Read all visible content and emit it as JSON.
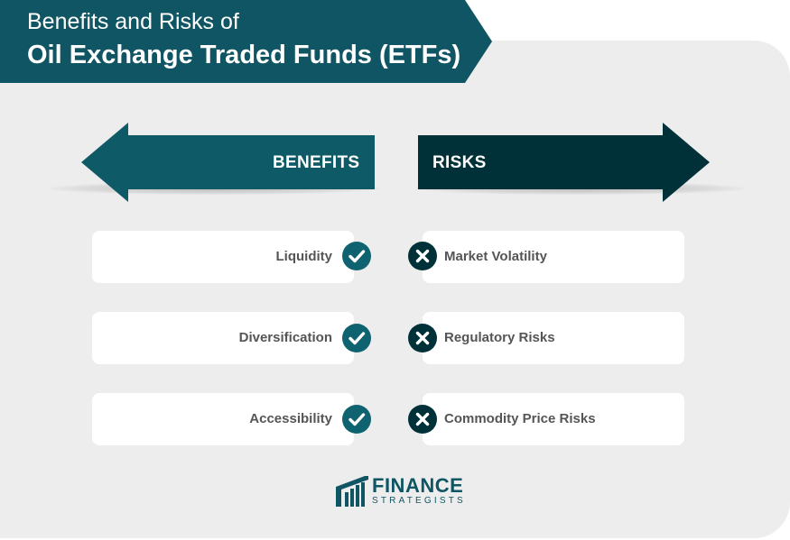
{
  "title": {
    "line1": "Benefits and Risks of",
    "line2": "Oil Exchange Traded Funds (ETFs)"
  },
  "benefits": {
    "heading": "BENEFITS",
    "items": [
      "Liquidity",
      "Diversification",
      "Accessibility"
    ]
  },
  "risks": {
    "heading": "RISKS",
    "items": [
      "Market Volatility",
      "Regulatory Risks",
      "Commodity Price Risks"
    ]
  },
  "logo": {
    "word1": "FINANCE",
    "word2": "STRATEGISTS"
  },
  "colors": {
    "banner": "#0f5563",
    "benefits_arrow": "#0f5a67",
    "risks_arrow": "#003038",
    "panel": "#ededed",
    "check_badge": "#0f6270",
    "cross_badge": "#003038"
  },
  "icons": {
    "benefit_badge": "check-icon",
    "risk_badge": "cross-icon",
    "logo_mark": "finance-strategists-logo-icon"
  }
}
